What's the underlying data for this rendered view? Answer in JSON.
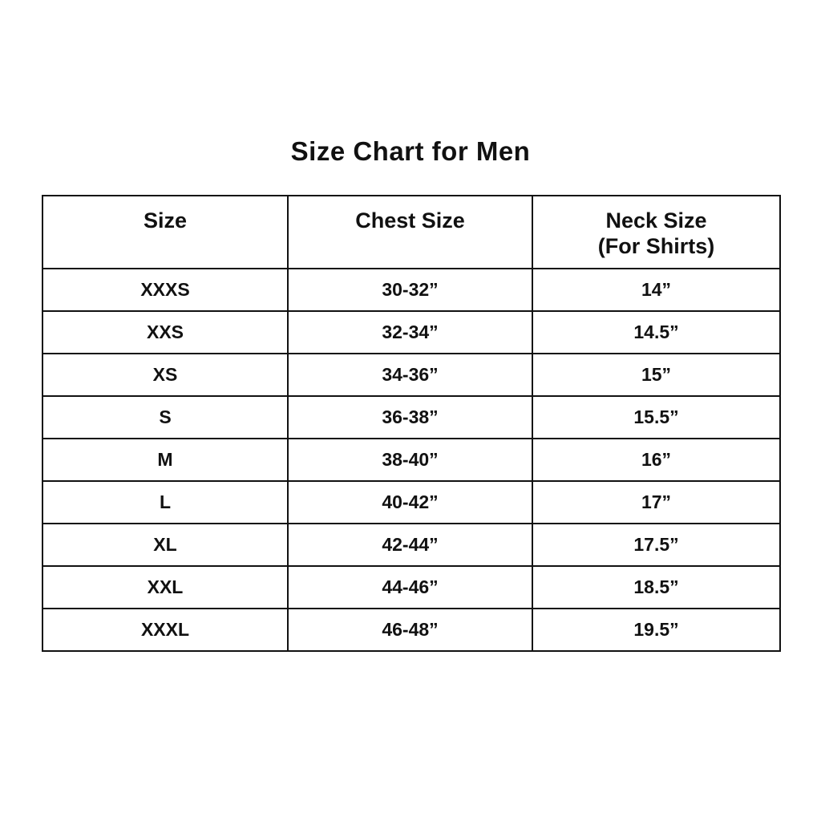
{
  "title": "Size Chart for Men",
  "table": {
    "headers": {
      "size": "Size",
      "chest": "Chest Size",
      "neck_line1": "Neck Size",
      "neck_line2": "(For Shirts)"
    },
    "rows": [
      {
        "size": "XXXS",
        "chest": "30-32”",
        "neck": "14”"
      },
      {
        "size": "XXS",
        "chest": "32-34”",
        "neck": "14.5”"
      },
      {
        "size": "XS",
        "chest": "34-36”",
        "neck": "15”"
      },
      {
        "size": "S",
        "chest": "36-38”",
        "neck": "15.5”"
      },
      {
        "size": "M",
        "chest": "38-40”",
        "neck": "16”"
      },
      {
        "size": "L",
        "chest": "40-42”",
        "neck": "17”"
      },
      {
        "size": "XL",
        "chest": "42-44”",
        "neck": "17.5”"
      },
      {
        "size": "XXL",
        "chest": "44-46”",
        "neck": "18.5”"
      },
      {
        "size": "XXXL",
        "chest": "46-48”",
        "neck": "19.5”"
      }
    ]
  },
  "colors": {
    "background": "#ffffff",
    "text": "#111111",
    "border": "#111111"
  },
  "chart_data": {
    "type": "table",
    "title": "Size Chart for Men",
    "columns": [
      "Size",
      "Chest Size",
      "Neck Size (For Shirts)"
    ],
    "rows": [
      [
        "XXXS",
        "30-32”",
        "14”"
      ],
      [
        "XXS",
        "32-34”",
        "14.5”"
      ],
      [
        "XS",
        "34-36”",
        "15”"
      ],
      [
        "S",
        "36-38”",
        "15.5”"
      ],
      [
        "M",
        "38-40”",
        "16”"
      ],
      [
        "L",
        "40-42”",
        "17”"
      ],
      [
        "XL",
        "42-44”",
        "17.5”"
      ],
      [
        "XXL",
        "44-46”",
        "18.5”"
      ],
      [
        "XXXL",
        "46-48”",
        "19.5”"
      ]
    ]
  }
}
